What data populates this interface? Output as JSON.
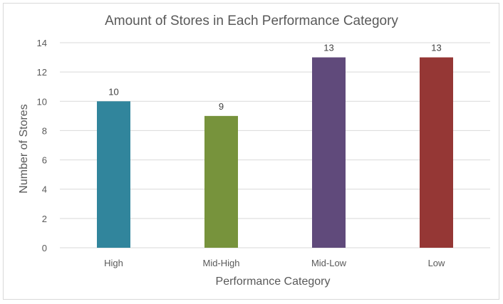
{
  "colors": {
    "high": "#31859c",
    "mid_high": "#77933c",
    "mid_low": "#604a7b",
    "low": "#953735",
    "gridline": "#d9d9d9",
    "text": "#595959",
    "title_text": "#595959"
  },
  "chart_data": {
    "type": "bar",
    "title": "Amount of Stores in Each Performance Category",
    "xlabel": "Performance Category",
    "ylabel": "Number of Stores",
    "categories": [
      "High",
      "Mid-High",
      "Mid-Low",
      "Low"
    ],
    "values": [
      10,
      9,
      13,
      13
    ],
    "data_labels": [
      "10",
      "9",
      "13",
      "13"
    ],
    "ylim": [
      0,
      14
    ],
    "yticks": [
      "0",
      "2",
      "4",
      "6",
      "8",
      "10",
      "12",
      "14"
    ],
    "grid": true,
    "legend": "none"
  }
}
